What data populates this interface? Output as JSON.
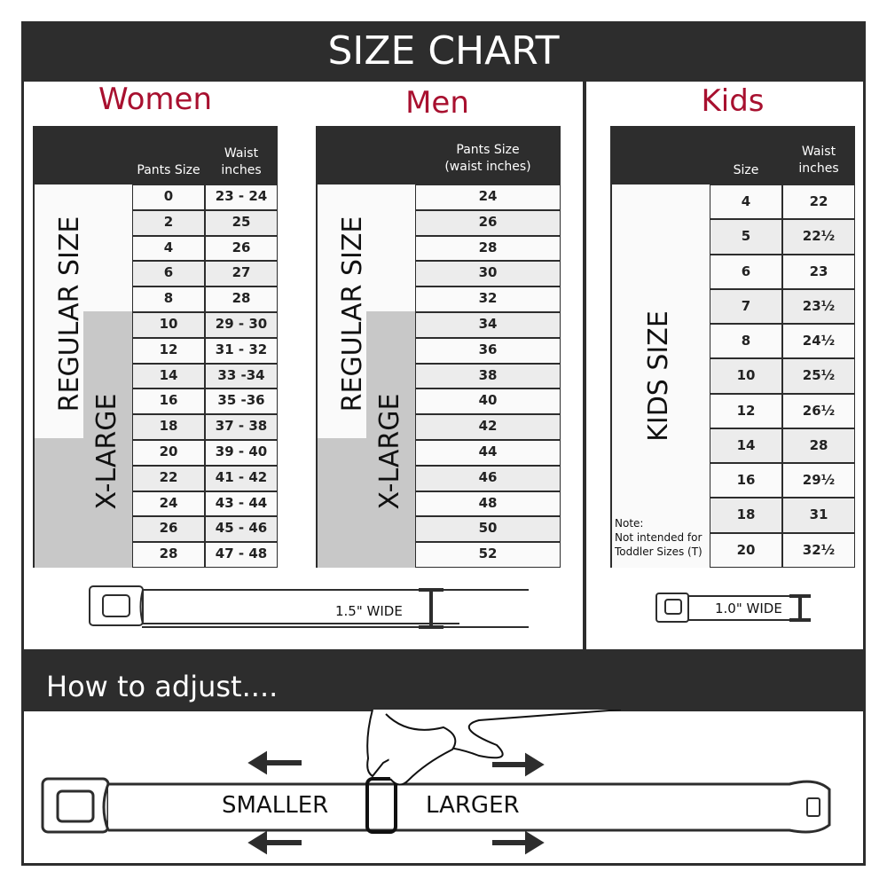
{
  "title": "SIZE CHART",
  "women": {
    "heading": "Women",
    "col1": "Pants Size",
    "col2": "Waist inches",
    "regular_label": "REGULAR SIZE",
    "xlarge_label": "X-LARGE",
    "rows": [
      [
        "0",
        "23 - 24"
      ],
      [
        "2",
        "25"
      ],
      [
        "4",
        "26"
      ],
      [
        "6",
        "27"
      ],
      [
        "8",
        "28"
      ],
      [
        "10",
        "29 - 30"
      ],
      [
        "12",
        "31 - 32"
      ],
      [
        "14",
        "33 -34"
      ],
      [
        "16",
        "35 -36"
      ],
      [
        "18",
        "37 - 38"
      ],
      [
        "20",
        "39 - 40"
      ],
      [
        "22",
        "41 - 42"
      ],
      [
        "24",
        "43 - 44"
      ],
      [
        "26",
        "45 - 46"
      ],
      [
        "28",
        "47 - 48"
      ]
    ]
  },
  "men": {
    "heading": "Men",
    "col1": "Pants Size",
    "col1_sub": "(waist inches)",
    "regular_label": "REGULAR SIZE",
    "xlarge_label": "X-LARGE",
    "rows": [
      "24",
      "26",
      "28",
      "30",
      "32",
      "34",
      "36",
      "38",
      "40",
      "42",
      "44",
      "46",
      "48",
      "50",
      "52"
    ]
  },
  "kids": {
    "heading": "Kids",
    "col1": "Size",
    "col2": "Waist inches",
    "label": "KIDS SIZE",
    "note_title": "Note:",
    "note_line1": "Not intended for",
    "note_line2": "Toddler Sizes (T)",
    "rows": [
      [
        "4",
        "22"
      ],
      [
        "5",
        "22½"
      ],
      [
        "6",
        "23"
      ],
      [
        "7",
        "23½"
      ],
      [
        "8",
        "24½"
      ],
      [
        "10",
        "25½"
      ],
      [
        "12",
        "26½"
      ],
      [
        "14",
        "28"
      ],
      [
        "16",
        "29½"
      ],
      [
        "18",
        "31"
      ],
      [
        "20",
        "32½"
      ]
    ]
  },
  "belt_adult": "1.5\" WIDE",
  "belt_kids": "1.0\" WIDE",
  "adjust": {
    "heading": "How to adjust....",
    "smaller": "SMALLER",
    "larger": "LARGER"
  },
  "colors": {
    "accent": "#a8102f",
    "dark": "#2d2d2d",
    "xlarge": "#c8c8c8"
  }
}
